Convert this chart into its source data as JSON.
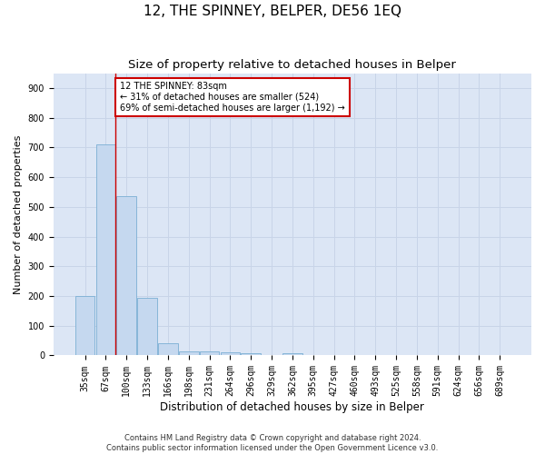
{
  "title": "12, THE SPINNEY, BELPER, DE56 1EQ",
  "subtitle": "Size of property relative to detached houses in Belper",
  "xlabel": "Distribution of detached houses by size in Belper",
  "ylabel": "Number of detached properties",
  "categories": [
    "35sqm",
    "67sqm",
    "100sqm",
    "133sqm",
    "166sqm",
    "198sqm",
    "231sqm",
    "264sqm",
    "296sqm",
    "329sqm",
    "362sqm",
    "395sqm",
    "427sqm",
    "460sqm",
    "493sqm",
    "525sqm",
    "558sqm",
    "591sqm",
    "624sqm",
    "656sqm",
    "689sqm"
  ],
  "values": [
    200,
    710,
    535,
    195,
    40,
    15,
    13,
    10,
    8,
    0,
    8,
    0,
    0,
    0,
    0,
    0,
    0,
    0,
    0,
    0,
    0
  ],
  "bar_color": "#c5d8ef",
  "bar_edge_color": "#7bafd4",
  "red_line_x": 1.48,
  "annotation_text": "12 THE SPINNEY: 83sqm\n← 31% of detached houses are smaller (524)\n69% of semi-detached houses are larger (1,192) →",
  "annotation_box_color": "#ffffff",
  "annotation_box_edge": "#cc0000",
  "title_fontsize": 11,
  "subtitle_fontsize": 9.5,
  "ylabel_fontsize": 8,
  "xlabel_fontsize": 8.5,
  "tick_fontsize": 7,
  "annotation_fontsize": 7,
  "ylim": [
    0,
    950
  ],
  "yticks": [
    0,
    100,
    200,
    300,
    400,
    500,
    600,
    700,
    800,
    900
  ],
  "footer": "Contains HM Land Registry data © Crown copyright and database right 2024.\nContains public sector information licensed under the Open Government Licence v3.0.",
  "grid_color": "#c8d4e8",
  "background_color": "#dce6f5"
}
